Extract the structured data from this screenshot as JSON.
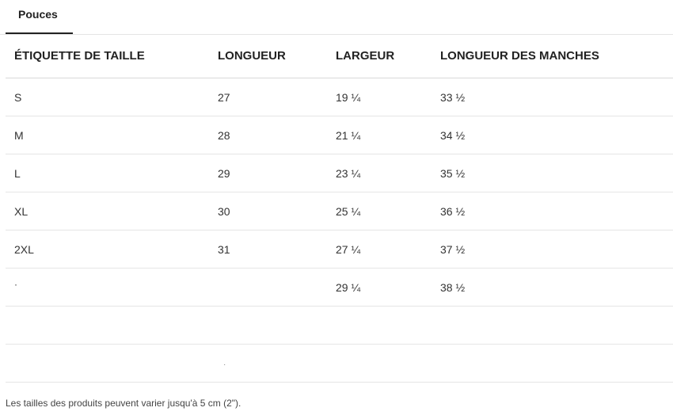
{
  "tabs": [
    {
      "label": "Pouces"
    }
  ],
  "table": {
    "headers": [
      "ÉTIQUETTE DE TAILLE",
      "LONGUEUR",
      "LARGEUR",
      "LONGUEUR DES MANCHES"
    ],
    "rows": [
      [
        "S",
        "27",
        "19 ¼",
        "33 ½"
      ],
      [
        "M",
        "28",
        "21 ¼",
        "34 ½"
      ],
      [
        "L",
        "29",
        "23 ¼",
        "35 ½"
      ],
      [
        "XL",
        "30",
        "25 ¼",
        "36 ½"
      ],
      [
        "2XL",
        "31",
        "27 ¼",
        "37 ½"
      ],
      [
        "·",
        "",
        "29 ¼",
        "38 ½"
      ],
      [
        "",
        "",
        "",
        ""
      ],
      [
        "",
        "",
        "",
        ""
      ]
    ]
  },
  "stray_mark": "·",
  "footnote": "Les tailles des produits peuvent varier jusqu'à 5 cm (2\")."
}
